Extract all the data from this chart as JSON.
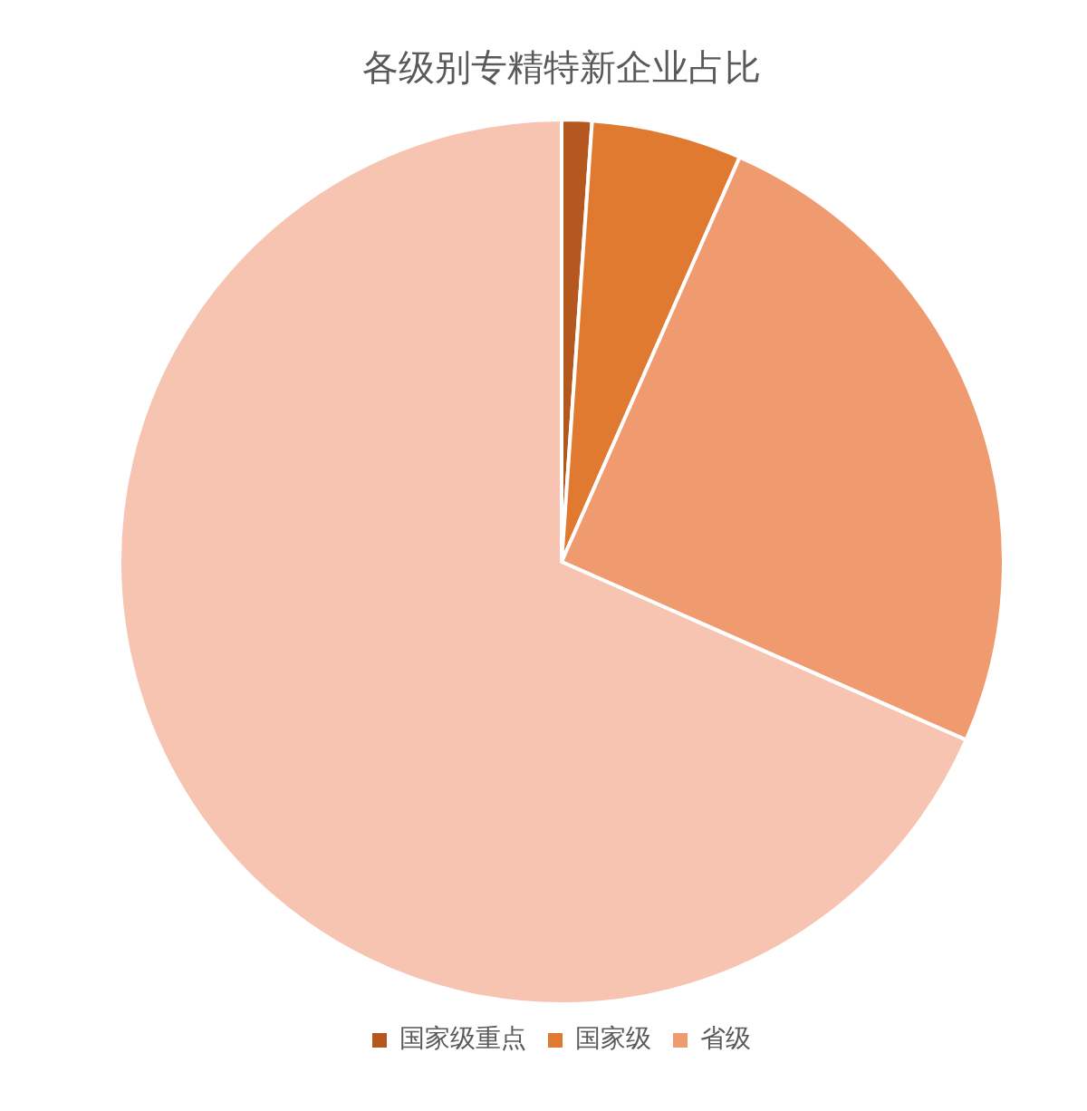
{
  "chart_data": {
    "type": "pie",
    "title": "各级别专精特新企业占比",
    "categories": [
      "国家级重点",
      "国家级",
      "省级",
      null
    ],
    "values": [
      1.1,
      5.5,
      25.0,
      68.4
    ],
    "colors": [
      "#b5581f",
      "#e07a30",
      "#f09b6f",
      "#f6c4b1"
    ],
    "legend": "bottom"
  }
}
